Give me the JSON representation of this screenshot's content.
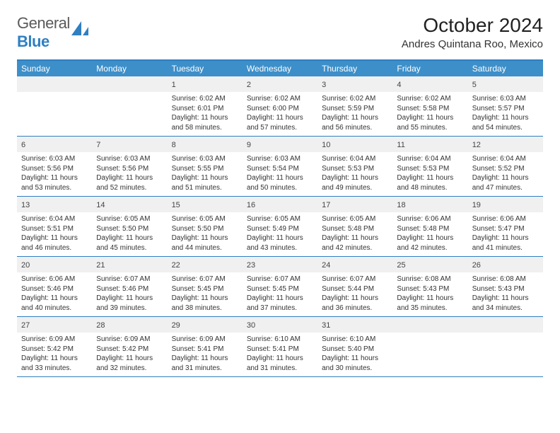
{
  "logo": {
    "text1": "General",
    "text2": "Blue"
  },
  "title": "October 2024",
  "location": "Andres Quintana Roo, Mexico",
  "colors": {
    "header_bg": "#3d8fc9",
    "border": "#2f7fc1",
    "daynum_bg": "#f0f0f0",
    "text": "#333333"
  },
  "day_headers": [
    "Sunday",
    "Monday",
    "Tuesday",
    "Wednesday",
    "Thursday",
    "Friday",
    "Saturday"
  ],
  "weeks": [
    [
      {
        "empty": true
      },
      {
        "empty": true
      },
      {
        "n": "1",
        "sr": "6:02 AM",
        "ss": "6:01 PM",
        "dl": "11 hours and 58 minutes."
      },
      {
        "n": "2",
        "sr": "6:02 AM",
        "ss": "6:00 PM",
        "dl": "11 hours and 57 minutes."
      },
      {
        "n": "3",
        "sr": "6:02 AM",
        "ss": "5:59 PM",
        "dl": "11 hours and 56 minutes."
      },
      {
        "n": "4",
        "sr": "6:02 AM",
        "ss": "5:58 PM",
        "dl": "11 hours and 55 minutes."
      },
      {
        "n": "5",
        "sr": "6:03 AM",
        "ss": "5:57 PM",
        "dl": "11 hours and 54 minutes."
      }
    ],
    [
      {
        "n": "6",
        "sr": "6:03 AM",
        "ss": "5:56 PM",
        "dl": "11 hours and 53 minutes."
      },
      {
        "n": "7",
        "sr": "6:03 AM",
        "ss": "5:56 PM",
        "dl": "11 hours and 52 minutes."
      },
      {
        "n": "8",
        "sr": "6:03 AM",
        "ss": "5:55 PM",
        "dl": "11 hours and 51 minutes."
      },
      {
        "n": "9",
        "sr": "6:03 AM",
        "ss": "5:54 PM",
        "dl": "11 hours and 50 minutes."
      },
      {
        "n": "10",
        "sr": "6:04 AM",
        "ss": "5:53 PM",
        "dl": "11 hours and 49 minutes."
      },
      {
        "n": "11",
        "sr": "6:04 AM",
        "ss": "5:53 PM",
        "dl": "11 hours and 48 minutes."
      },
      {
        "n": "12",
        "sr": "6:04 AM",
        "ss": "5:52 PM",
        "dl": "11 hours and 47 minutes."
      }
    ],
    [
      {
        "n": "13",
        "sr": "6:04 AM",
        "ss": "5:51 PM",
        "dl": "11 hours and 46 minutes."
      },
      {
        "n": "14",
        "sr": "6:05 AM",
        "ss": "5:50 PM",
        "dl": "11 hours and 45 minutes."
      },
      {
        "n": "15",
        "sr": "6:05 AM",
        "ss": "5:50 PM",
        "dl": "11 hours and 44 minutes."
      },
      {
        "n": "16",
        "sr": "6:05 AM",
        "ss": "5:49 PM",
        "dl": "11 hours and 43 minutes."
      },
      {
        "n": "17",
        "sr": "6:05 AM",
        "ss": "5:48 PM",
        "dl": "11 hours and 42 minutes."
      },
      {
        "n": "18",
        "sr": "6:06 AM",
        "ss": "5:48 PM",
        "dl": "11 hours and 42 minutes."
      },
      {
        "n": "19",
        "sr": "6:06 AM",
        "ss": "5:47 PM",
        "dl": "11 hours and 41 minutes."
      }
    ],
    [
      {
        "n": "20",
        "sr": "6:06 AM",
        "ss": "5:46 PM",
        "dl": "11 hours and 40 minutes."
      },
      {
        "n": "21",
        "sr": "6:07 AM",
        "ss": "5:46 PM",
        "dl": "11 hours and 39 minutes."
      },
      {
        "n": "22",
        "sr": "6:07 AM",
        "ss": "5:45 PM",
        "dl": "11 hours and 38 minutes."
      },
      {
        "n": "23",
        "sr": "6:07 AM",
        "ss": "5:45 PM",
        "dl": "11 hours and 37 minutes."
      },
      {
        "n": "24",
        "sr": "6:07 AM",
        "ss": "5:44 PM",
        "dl": "11 hours and 36 minutes."
      },
      {
        "n": "25",
        "sr": "6:08 AM",
        "ss": "5:43 PM",
        "dl": "11 hours and 35 minutes."
      },
      {
        "n": "26",
        "sr": "6:08 AM",
        "ss": "5:43 PM",
        "dl": "11 hours and 34 minutes."
      }
    ],
    [
      {
        "n": "27",
        "sr": "6:09 AM",
        "ss": "5:42 PM",
        "dl": "11 hours and 33 minutes."
      },
      {
        "n": "28",
        "sr": "6:09 AM",
        "ss": "5:42 PM",
        "dl": "11 hours and 32 minutes."
      },
      {
        "n": "29",
        "sr": "6:09 AM",
        "ss": "5:41 PM",
        "dl": "11 hours and 31 minutes."
      },
      {
        "n": "30",
        "sr": "6:10 AM",
        "ss": "5:41 PM",
        "dl": "11 hours and 31 minutes."
      },
      {
        "n": "31",
        "sr": "6:10 AM",
        "ss": "5:40 PM",
        "dl": "11 hours and 30 minutes."
      },
      {
        "empty": true
      },
      {
        "empty": true
      }
    ]
  ],
  "labels": {
    "sunrise": "Sunrise:",
    "sunset": "Sunset:",
    "daylight": "Daylight:"
  }
}
